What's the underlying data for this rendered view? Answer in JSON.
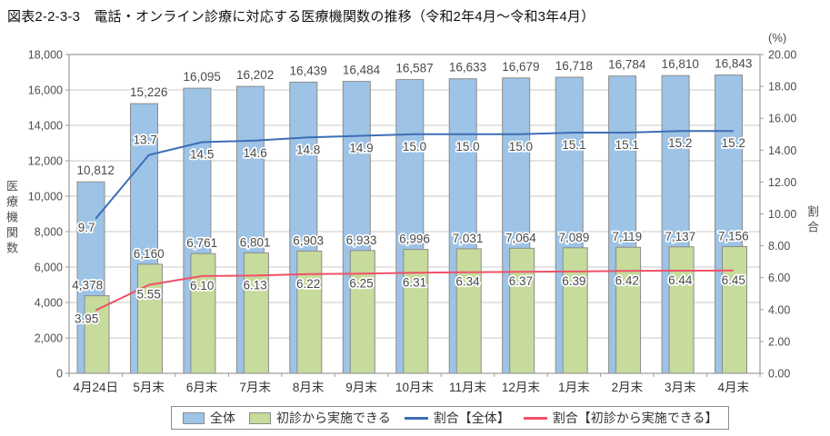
{
  "title": "図表2-2-3-3　電話・オンライン診療に対応する医療機関数の推移（令和2年4月～令和3年4月）",
  "chart_data": {
    "type": "bar+line combo, dual axis",
    "categories": [
      "4月24日",
      "5月末",
      "6月末",
      "7月末",
      "8月末",
      "9月末",
      "10月末",
      "11月末",
      "12月末",
      "1月末",
      "2月末",
      "3月末",
      "4月末"
    ],
    "series": [
      {
        "name": "全体",
        "type": "bar",
        "axis": "left",
        "color": "#9DC3E6",
        "border": "#8C8C8C",
        "values": [
          10812,
          15226,
          16095,
          16202,
          16439,
          16484,
          16587,
          16633,
          16679,
          16718,
          16784,
          16810,
          16843
        ],
        "labels": [
          "10,812",
          "15,226",
          "16,095",
          "16,202",
          "16,439",
          "16,484",
          "16,587",
          "16,633",
          "16,679",
          "16,718",
          "16,784",
          "16,810",
          "16,843"
        ]
      },
      {
        "name": "初診から実施できる",
        "type": "bar",
        "axis": "left",
        "color": "#C6DB9C",
        "border": "#8C8C8C",
        "values": [
          4378,
          6160,
          6761,
          6801,
          6903,
          6933,
          6996,
          7031,
          7064,
          7089,
          7119,
          7137,
          7156
        ],
        "labels": [
          "4,378",
          "6,160",
          "6,761",
          "6,801",
          "6,903",
          "6,933",
          "6,996",
          "7,031",
          "7,064",
          "7,089",
          "7,119",
          "7,137",
          "7,156"
        ]
      },
      {
        "name": "割合【全体】",
        "type": "line",
        "axis": "right",
        "color": "#3D6EB5",
        "values": [
          9.7,
          13.7,
          14.5,
          14.6,
          14.8,
          14.9,
          15.0,
          15.0,
          15.0,
          15.1,
          15.1,
          15.2,
          15.2
        ],
        "labels": [
          "9.7",
          "13.7",
          "14.5",
          "14.6",
          "14.8",
          "14.9",
          "15.0",
          "15.0",
          "15.0",
          "15.1",
          "15.1",
          "15.2",
          "15.2"
        ]
      },
      {
        "name": "割合【初診から実施できる】",
        "type": "line",
        "axis": "right",
        "color": "#EF5168",
        "values": [
          3.95,
          5.55,
          6.1,
          6.13,
          6.22,
          6.25,
          6.31,
          6.34,
          6.37,
          6.39,
          6.42,
          6.44,
          6.45
        ],
        "labels": [
          "3.95",
          "5.55",
          "6.10",
          "6.13",
          "6.22",
          "6.25",
          "6.31",
          "6.34",
          "6.37",
          "6.39",
          "6.42",
          "6.44",
          "6.45"
        ]
      }
    ],
    "left_axis": {
      "label": "医療機関数",
      "min": 0,
      "max": 18000,
      "step": 2000,
      "ticks": [
        "0",
        "2,000",
        "4,000",
        "6,000",
        "8,000",
        "10,000",
        "12,000",
        "14,000",
        "16,000",
        "18,000"
      ]
    },
    "right_axis": {
      "label": "割合",
      "unit": "(%)",
      "min": 0,
      "max": 20,
      "step": 2,
      "ticks": [
        "0.00",
        "2.00",
        "4.00",
        "6.00",
        "8.00",
        "10.00",
        "12.00",
        "14.00",
        "16.00",
        "18.00",
        "20.00"
      ]
    },
    "grid": true,
    "legend_position": "bottom"
  }
}
